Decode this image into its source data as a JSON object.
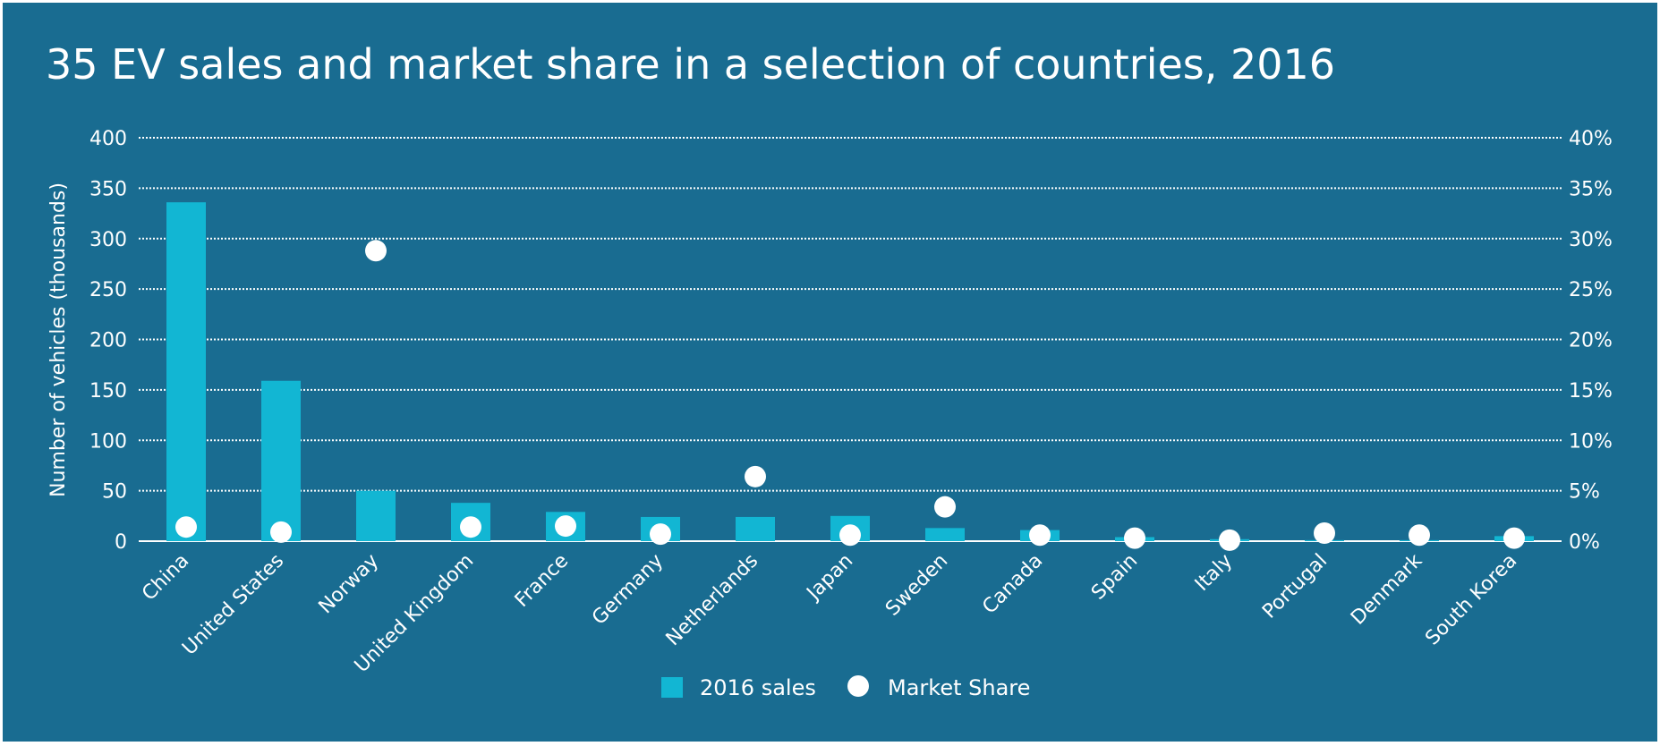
{
  "chart_data": {
    "type": "bar",
    "title": "35 EV sales and market share in a selection of countries, 2016",
    "ylabel": "Number of vehicles (thousands)",
    "categories": [
      "China",
      "United States",
      "Norway",
      "United Kingdom",
      "France",
      "Germany",
      "Netherlands",
      "Japan",
      "Sweden",
      "Canada",
      "Spain",
      "Italy",
      "Portugal",
      "Denmark",
      "South Korea"
    ],
    "ylim": [
      0,
      400
    ],
    "y2lim": [
      0,
      40
    ],
    "yticks": [
      "0",
      "50",
      "100",
      "150",
      "200",
      "250",
      "300",
      "350",
      "400"
    ],
    "y2ticks": [
      "0%",
      "5%",
      "10%",
      "15%",
      "20%",
      "25%",
      "30%",
      "35%",
      "40%"
    ],
    "grid": true,
    "legend_position": "bottom",
    "series": [
      {
        "name": "2016 sales",
        "type": "bar",
        "axis": "left",
        "color": "#12b6d3",
        "values": [
          336,
          159,
          50,
          38,
          29,
          24,
          24,
          25,
          13,
          11,
          4,
          2,
          1,
          1,
          5
        ]
      },
      {
        "name": "Market Share",
        "type": "scatter",
        "axis": "right",
        "color": "#ffffff",
        "values": [
          1.4,
          0.9,
          28.8,
          1.4,
          1.5,
          0.7,
          6.4,
          0.6,
          3.4,
          0.6,
          0.3,
          0.1,
          0.8,
          0.6,
          0.3
        ]
      }
    ]
  }
}
